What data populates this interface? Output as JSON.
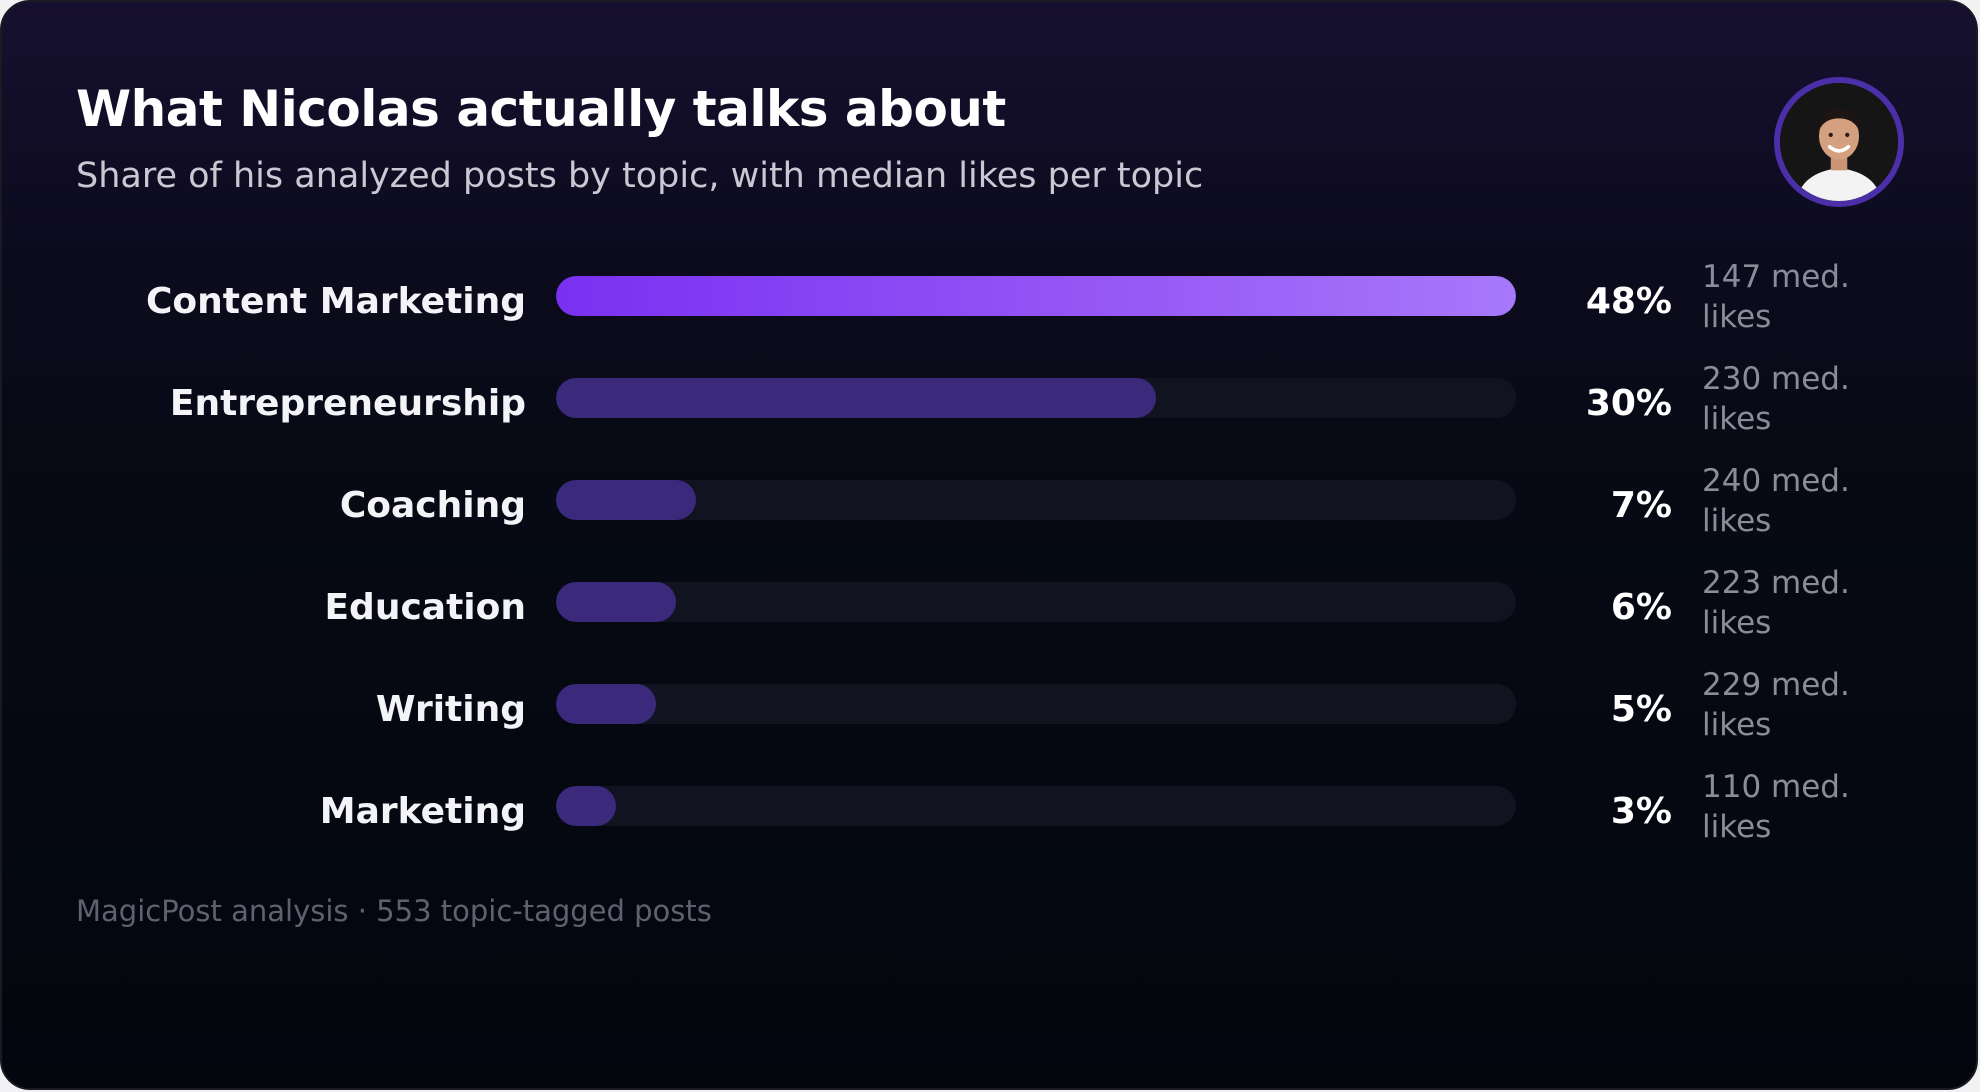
{
  "header": {
    "title": "What Nicolas actually talks about",
    "subtitle": "Share of his analyzed posts by topic, with median likes per topic"
  },
  "footer": {
    "note": "MagicPost analysis · 553 topic-tagged posts"
  },
  "colors": {
    "accent_start": "#7a30f2",
    "accent_end": "#a778fb",
    "bar_secondary": "#3b2a7c",
    "track": "#111420"
  },
  "chart_data": {
    "type": "bar",
    "orientation": "horizontal",
    "xlim": [
      0,
      48
    ],
    "categories": [
      "Content Marketing",
      "Entrepreneurship",
      "Coaching",
      "Education",
      "Writing",
      "Marketing"
    ],
    "values": [
      48,
      30,
      7,
      6,
      5,
      3
    ],
    "value_labels": [
      "48%",
      "30%",
      "7%",
      "6%",
      "5%",
      "3%"
    ],
    "median_likes": [
      147,
      230,
      240,
      223,
      229,
      110
    ],
    "median_likes_labels": [
      "147 med. likes",
      "230 med. likes",
      "240 med. likes",
      "223 med. likes",
      "229 med. likes",
      "110 med. likes"
    ],
    "highlight_index": 0
  }
}
